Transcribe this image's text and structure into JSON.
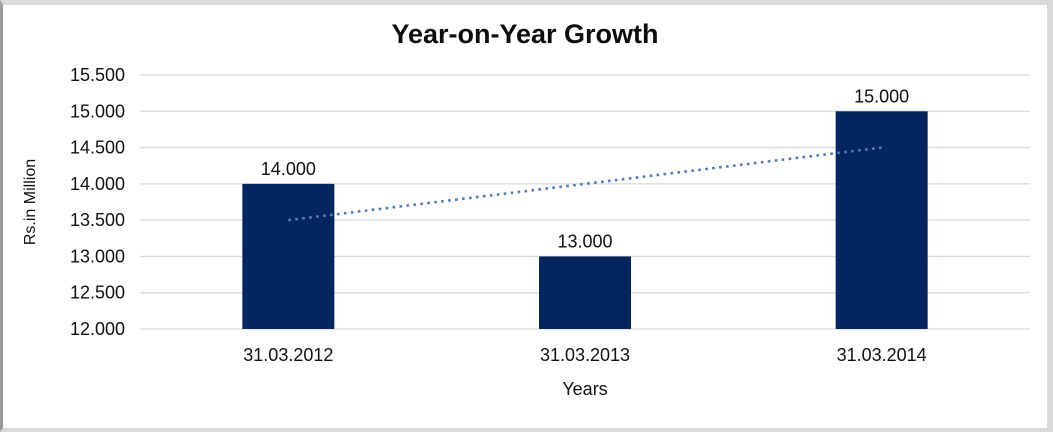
{
  "chart_data": {
    "type": "bar",
    "title": "Year-on-Year Growth",
    "xlabel": "Years",
    "ylabel": "Rs.in Million",
    "categories": [
      "31.03.2012",
      "31.03.2013",
      "31.03.2014"
    ],
    "values": [
      14000,
      13000,
      15000
    ],
    "value_labels": [
      "14.000",
      "13.000",
      "15.000"
    ],
    "ylim": [
      12000,
      15500
    ],
    "ytick_step": 500,
    "ytick_labels": [
      "12.000",
      "12.500",
      "13.000",
      "13.500",
      "14.000",
      "14.500",
      "15.000",
      "15.500"
    ],
    "grid": "horizontal",
    "legend": "none",
    "bar_color": "#04265F",
    "gridline_color": "#D9D9D9",
    "text_color": "#111111",
    "trendline": {
      "type": "linear",
      "style": "dotted",
      "color": "#4A7EBB",
      "points": [
        {
          "category": "31.03.2012",
          "value": 13500
        },
        {
          "category": "31.03.2014",
          "value": 14500
        }
      ]
    }
  }
}
